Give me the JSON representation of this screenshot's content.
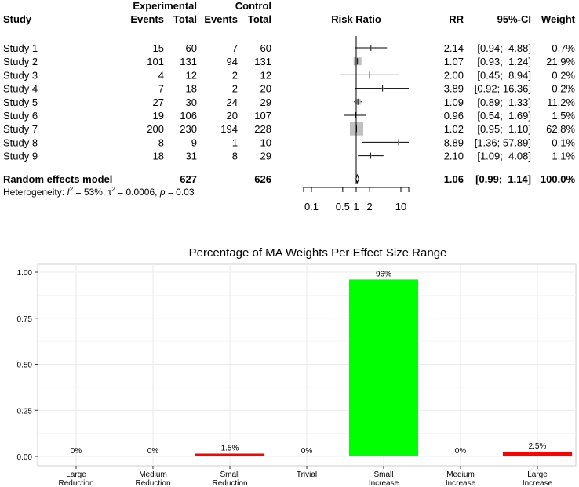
{
  "forest": {
    "header": {
      "study": "Study",
      "experimental": "Experimental",
      "control": "Control",
      "events": "Events",
      "total": "Total",
      "risk_ratio": "Risk Ratio",
      "rr": "RR",
      "ci": "95%-CI",
      "weight": "Weight"
    },
    "studies": [
      {
        "name": "Study 1",
        "exp_events": "15",
        "exp_total": "60",
        "ctrl_events": "7",
        "ctrl_total": "60",
        "rr": "2.14",
        "ci": "[0.94;  4.88]",
        "weight": "0.7%",
        "rr_value": 2.14,
        "ci_low": 0.94,
        "ci_high": 4.88,
        "weight_value": 0.7
      },
      {
        "name": "Study 2",
        "exp_events": "101",
        "exp_total": "131",
        "ctrl_events": "94",
        "ctrl_total": "131",
        "rr": "1.07",
        "ci": "[0.93;  1.24]",
        "weight": "21.9%",
        "rr_value": 1.07,
        "ci_low": 0.93,
        "ci_high": 1.24,
        "weight_value": 21.9
      },
      {
        "name": "Study 3",
        "exp_events": "4",
        "exp_total": "12",
        "ctrl_events": "2",
        "ctrl_total": "12",
        "rr": "2.00",
        "ci": "[0.45;  8.94]",
        "weight": "0.2%",
        "rr_value": 2.0,
        "ci_low": 0.45,
        "ci_high": 8.94,
        "weight_value": 0.2
      },
      {
        "name": "Study 4",
        "exp_events": "7",
        "exp_total": "18",
        "ctrl_events": "2",
        "ctrl_total": "20",
        "rr": "3.89",
        "ci": "[0.92; 16.36]",
        "weight": "0.2%",
        "rr_value": 3.89,
        "ci_low": 0.92,
        "ci_high": 16.36,
        "weight_value": 0.2
      },
      {
        "name": "Study 5",
        "exp_events": "27",
        "exp_total": "30",
        "ctrl_events": "24",
        "ctrl_total": "29",
        "rr": "1.09",
        "ci": "[0.89;  1.33]",
        "weight": "11.2%",
        "rr_value": 1.09,
        "ci_low": 0.89,
        "ci_high": 1.33,
        "weight_value": 11.2
      },
      {
        "name": "Study 6",
        "exp_events": "19",
        "exp_total": "106",
        "ctrl_events": "20",
        "ctrl_total": "107",
        "rr": "0.96",
        "ci": "[0.54;  1.69]",
        "weight": "1.5%",
        "rr_value": 0.96,
        "ci_low": 0.54,
        "ci_high": 1.69,
        "weight_value": 1.5
      },
      {
        "name": "Study 7",
        "exp_events": "200",
        "exp_total": "230",
        "ctrl_events": "194",
        "ctrl_total": "228",
        "rr": "1.02",
        "ci": "[0.95;  1.10]",
        "weight": "62.8%",
        "rr_value": 1.02,
        "ci_low": 0.95,
        "ci_high": 1.1,
        "weight_value": 62.8
      },
      {
        "name": "Study 8",
        "exp_events": "8",
        "exp_total": "9",
        "ctrl_events": "1",
        "ctrl_total": "10",
        "rr": "8.89",
        "ci": "[1.36; 57.89]",
        "weight": "0.1%",
        "rr_value": 8.89,
        "ci_low": 1.36,
        "ci_high": 57.89,
        "weight_value": 0.1
      },
      {
        "name": "Study 9",
        "exp_events": "18",
        "exp_total": "31",
        "ctrl_events": "8",
        "ctrl_total": "29",
        "rr": "2.10",
        "ci": "[1.09;  4.08]",
        "weight": "1.1%",
        "rr_value": 2.1,
        "ci_low": 1.09,
        "ci_high": 4.08,
        "weight_value": 1.1
      }
    ],
    "random_effects": {
      "label": "Random effects model",
      "exp_total": "627",
      "ctrl_total": "626",
      "rr": "1.06",
      "ci": "[0.99;  1.14]",
      "weight": "100.0%",
      "rr_value": 1.06,
      "ci_low": 0.99,
      "ci_high": 1.14
    },
    "heterogeneity": {
      "prefix": "Heterogeneity: ",
      "i2_symbol": "I",
      "sup": "2",
      "i2_value": " = 53%, ",
      "tau_symbol": "τ",
      "tau_value": " = 0.0006, ",
      "p_symbol": "p",
      "p_value": " = 0.03"
    },
    "axis": {
      "ticks": [
        0.1,
        0.5,
        1,
        2,
        10
      ],
      "tick_labels": [
        "0.1",
        "0.5",
        "1",
        "2",
        "10"
      ],
      "scale": "log",
      "range": [
        0.1,
        10
      ],
      "reference": 1
    },
    "colors": {
      "square": "#c0c0c0",
      "line": "#000000"
    }
  },
  "chart_data": {
    "type": "bar",
    "title": "Percentage of MA Weights Per Effect Size Range",
    "categories": [
      "Large\nReduction",
      "Medium\nReduction",
      "Small\nReduction",
      "Trivial",
      "Small\nIncrease",
      "Medium\nIncrease",
      "Large\nIncrease"
    ],
    "values": [
      0.0,
      0.0,
      0.015,
      0.0,
      0.96,
      0.0,
      0.025
    ],
    "labels": [
      "0%",
      "0%",
      "1.5%",
      "0%",
      "96%",
      "0%",
      "2.5%"
    ],
    "colors": [
      "#ff0000",
      "#ff0000",
      "#ff0000",
      "#00ff00",
      "#00ff00",
      "#ff0000",
      "#ff0000"
    ],
    "ylim": [
      0,
      1
    ],
    "yticks": [
      0.0,
      0.25,
      0.5,
      0.75,
      1.0
    ],
    "ytick_labels": [
      "0.00",
      "0.25",
      "0.50",
      "0.75",
      "1.00"
    ],
    "xlabel": "",
    "ylabel": "",
    "grid": true,
    "background": "#ffffff",
    "grid_color": "#ebebeb"
  }
}
